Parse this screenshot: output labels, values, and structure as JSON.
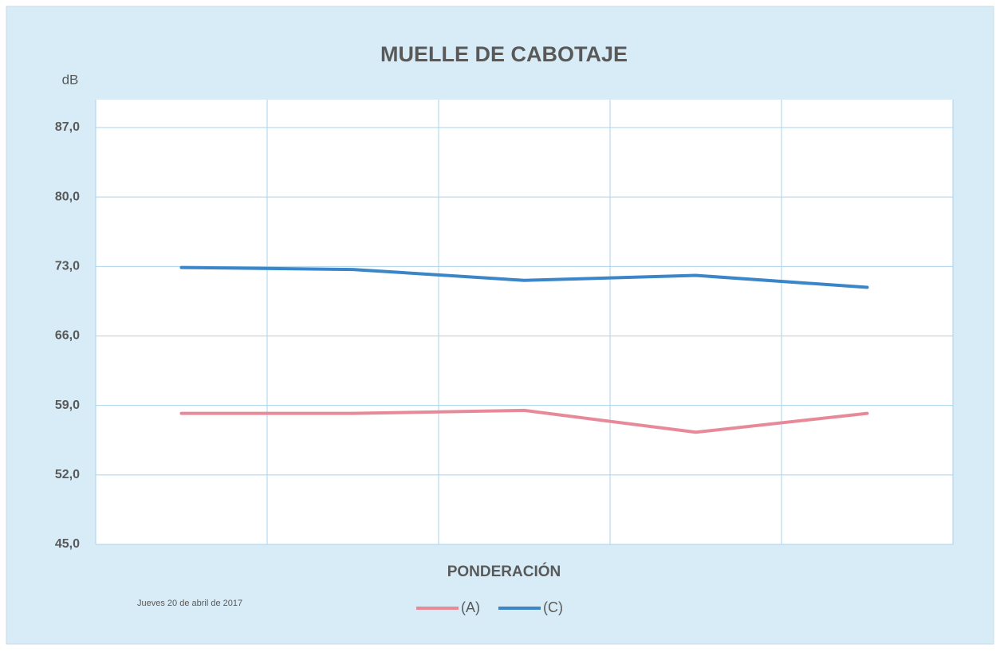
{
  "chart_data": {
    "type": "line",
    "title": "MUELLE DE CABOTAJE",
    "y_label": "dB",
    "x_label": "PONDERACIÓN",
    "annotation": "Jueves 20 de abril de 2017",
    "categories": [
      null,
      null,
      null,
      null,
      null
    ],
    "series": [
      {
        "name": "(A)",
        "color": "#e8899a",
        "values": [
          58.2,
          58.2,
          58.5,
          56.3,
          58.2
        ]
      },
      {
        "name": "(C)",
        "color": "#3a86c8",
        "values": [
          72.9,
          72.7,
          71.6,
          72.1,
          70.9
        ]
      }
    ],
    "ylim": [
      45,
      87
    ],
    "yticks": [
      {
        "value": 45,
        "label": "45,0"
      },
      {
        "value": 52,
        "label": "52,0"
      },
      {
        "value": 59,
        "label": "59,0"
      },
      {
        "value": 66,
        "label": "66,0"
      },
      {
        "value": 73,
        "label": "73,0"
      },
      {
        "value": 80,
        "label": "80,0"
      },
      {
        "value": 87,
        "label": "87,0"
      }
    ],
    "grid": true
  }
}
